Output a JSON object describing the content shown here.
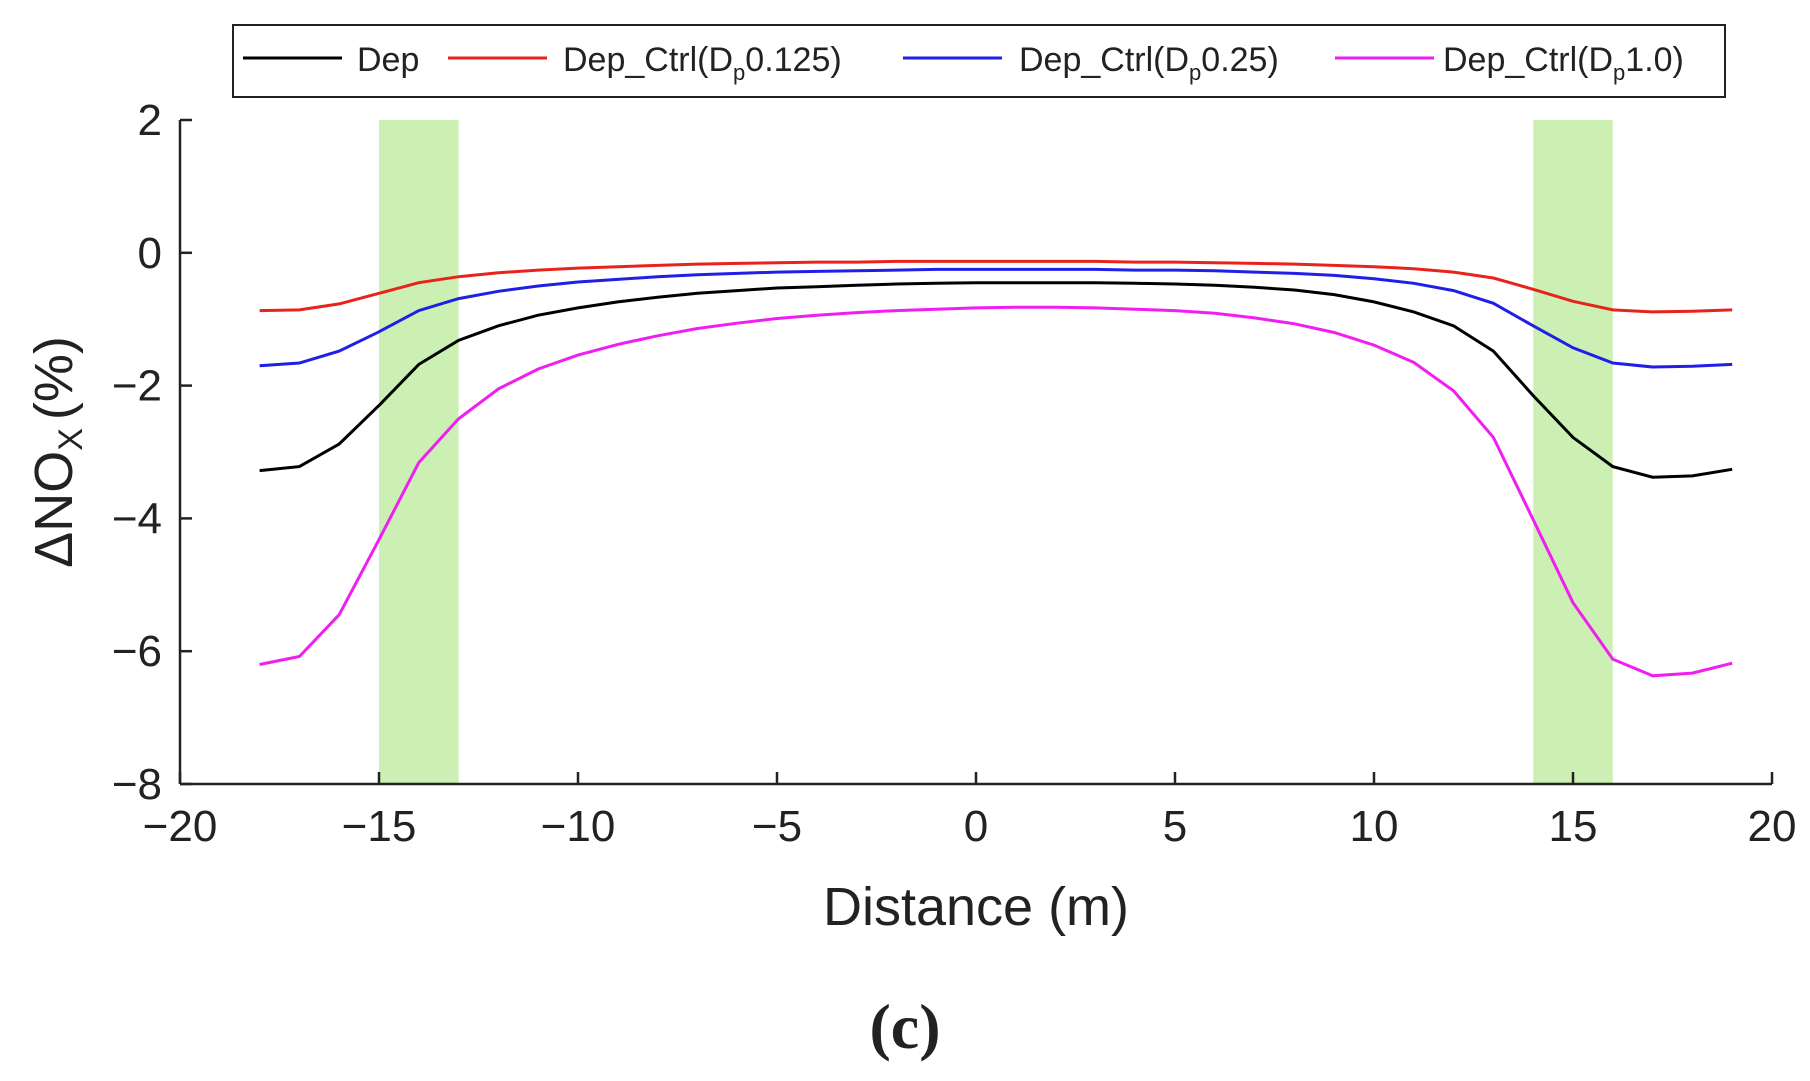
{
  "chart_data": {
    "type": "line",
    "title": "",
    "panel_label": "(c)",
    "xlabel": "Distance (m)",
    "ylabel_main": "ΔNO",
    "ylabel_sub": "X",
    "ylabel_unit": "(%)",
    "xlim": [
      -20,
      20
    ],
    "ylim": [
      -8,
      2
    ],
    "xticks": [
      -20,
      -15,
      -10,
      -5,
      0,
      5,
      10,
      15,
      20
    ],
    "xtick_labels": [
      "−20",
      "−15",
      "−10",
      "−5",
      "0",
      "5",
      "10",
      "15",
      "20"
    ],
    "yticks": [
      -8,
      -6,
      -4,
      -2,
      0,
      2
    ],
    "ytick_labels": [
      "−8",
      "−6",
      "−4",
      "−2",
      "0",
      "2"
    ],
    "shaded_regions": [
      {
        "x_start": -15,
        "x_end": -13,
        "color": "#ccf0b4"
      },
      {
        "x_start": 14,
        "x_end": 16,
        "color": "#ccf0b4"
      }
    ],
    "legend_position": "top",
    "x": [
      -18,
      -17,
      -16,
      -15,
      -14,
      -13,
      -12,
      -11,
      -10,
      -9,
      -8,
      -7,
      -6,
      -5,
      -4,
      -3,
      -2,
      -1,
      0,
      1,
      2,
      3,
      4,
      5,
      6,
      7,
      8,
      9,
      10,
      11,
      12,
      13,
      14,
      15,
      16,
      17,
      18,
      19
    ],
    "series": [
      {
        "name": "Dep",
        "label_main": "Dep",
        "label_sub": "",
        "label_tail": "",
        "color": "#000000",
        "values": [
          -3.28,
          -3.22,
          -2.88,
          -2.3,
          -1.68,
          -1.32,
          -1.1,
          -0.94,
          -0.83,
          -0.74,
          -0.67,
          -0.61,
          -0.57,
          -0.53,
          -0.51,
          -0.49,
          -0.47,
          -0.46,
          -0.45,
          -0.45,
          -0.45,
          -0.45,
          -0.46,
          -0.47,
          -0.49,
          -0.52,
          -0.56,
          -0.63,
          -0.74,
          -0.89,
          -1.1,
          -1.48,
          -2.15,
          -2.78,
          -3.22,
          -3.38,
          -3.36,
          -3.26
        ]
      },
      {
        "name": "Dep_Ctrl(Dp0.125)",
        "label_main": "Dep_Ctrl(D",
        "label_sub": "p",
        "label_tail": "0.125)",
        "color": "#e8231b",
        "values": [
          -0.87,
          -0.86,
          -0.77,
          -0.61,
          -0.45,
          -0.36,
          -0.3,
          -0.26,
          -0.23,
          -0.21,
          -0.19,
          -0.17,
          -0.16,
          -0.15,
          -0.14,
          -0.14,
          -0.13,
          -0.13,
          -0.13,
          -0.13,
          -0.13,
          -0.13,
          -0.14,
          -0.14,
          -0.15,
          -0.16,
          -0.17,
          -0.19,
          -0.21,
          -0.24,
          -0.29,
          -0.38,
          -0.55,
          -0.73,
          -0.86,
          -0.89,
          -0.88,
          -0.86
        ]
      },
      {
        "name": "Dep_Ctrl(Dp0.25)",
        "label_main": "Dep_Ctrl(D",
        "label_sub": "p",
        "label_tail": "0.25)",
        "color": "#1f1fe8",
        "values": [
          -1.7,
          -1.66,
          -1.48,
          -1.19,
          -0.87,
          -0.69,
          -0.58,
          -0.5,
          -0.44,
          -0.4,
          -0.36,
          -0.33,
          -0.31,
          -0.29,
          -0.28,
          -0.27,
          -0.26,
          -0.25,
          -0.25,
          -0.25,
          -0.25,
          -0.25,
          -0.26,
          -0.26,
          -0.27,
          -0.29,
          -0.31,
          -0.34,
          -0.39,
          -0.46,
          -0.57,
          -0.76,
          -1.1,
          -1.43,
          -1.66,
          -1.72,
          -1.71,
          -1.68
        ]
      },
      {
        "name": "Dep_Ctrl(Dp1.0)",
        "label_main": "Dep_Ctrl(D",
        "label_sub": "p",
        "label_tail": "1.0)",
        "color": "#f01ef0",
        "values": [
          -6.2,
          -6.08,
          -5.45,
          -4.32,
          -3.16,
          -2.5,
          -2.05,
          -1.75,
          -1.54,
          -1.38,
          -1.25,
          -1.14,
          -1.06,
          -0.99,
          -0.94,
          -0.9,
          -0.87,
          -0.85,
          -0.83,
          -0.82,
          -0.82,
          -0.83,
          -0.85,
          -0.87,
          -0.91,
          -0.98,
          -1.07,
          -1.2,
          -1.39,
          -1.65,
          -2.08,
          -2.78,
          -4.02,
          -5.27,
          -6.12,
          -6.37,
          -6.33,
          -6.18
        ]
      }
    ]
  }
}
